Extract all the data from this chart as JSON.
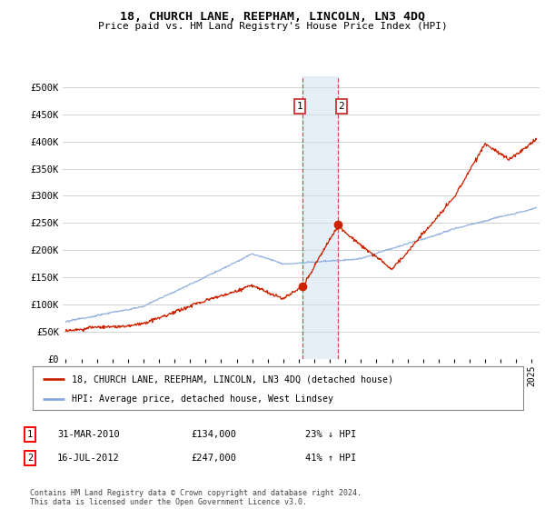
{
  "title": "18, CHURCH LANE, REEPHAM, LINCOLN, LN3 4DQ",
  "subtitle": "Price paid vs. HM Land Registry's House Price Index (HPI)",
  "ylabel_ticks": [
    "£0",
    "£50K",
    "£100K",
    "£150K",
    "£200K",
    "£250K",
    "£300K",
    "£350K",
    "£400K",
    "£450K",
    "£500K"
  ],
  "ytick_values": [
    0,
    50000,
    100000,
    150000,
    200000,
    250000,
    300000,
    350000,
    400000,
    450000,
    500000
  ],
  "ylim": [
    0,
    520000
  ],
  "xlim_start": 1994.8,
  "xlim_end": 2025.5,
  "hpi_color": "#88aadd",
  "price_color": "#cc2200",
  "transaction1_x": 2010.25,
  "transaction1_y": 134000,
  "transaction2_x": 2012.54,
  "transaction2_y": 247000,
  "shade_x1": 2010.25,
  "shade_x2": 2012.54,
  "shade_color": "#cce0f0",
  "shade_alpha": 0.5,
  "legend_label_price": "18, CHURCH LANE, REEPHAM, LINCOLN, LN3 4DQ (detached house)",
  "legend_label_hpi": "HPI: Average price, detached house, West Lindsey",
  "table_rows": [
    {
      "num": "1",
      "date": "31-MAR-2010",
      "price": "£134,000",
      "change": "23% ↓ HPI"
    },
    {
      "num": "2",
      "date": "16-JUL-2012",
      "price": "£247,000",
      "change": "41% ↑ HPI"
    }
  ],
  "footer": "Contains HM Land Registry data © Crown copyright and database right 2024.\nThis data is licensed under the Open Government Licence v3.0.",
  "background_color": "#ffffff",
  "grid_color": "#cccccc",
  "xtick_years": [
    1995,
    1996,
    1997,
    1998,
    1999,
    2000,
    2001,
    2002,
    2003,
    2004,
    2005,
    2006,
    2007,
    2008,
    2009,
    2010,
    2011,
    2012,
    2013,
    2014,
    2015,
    2016,
    2017,
    2018,
    2019,
    2020,
    2021,
    2022,
    2023,
    2024,
    2025
  ]
}
